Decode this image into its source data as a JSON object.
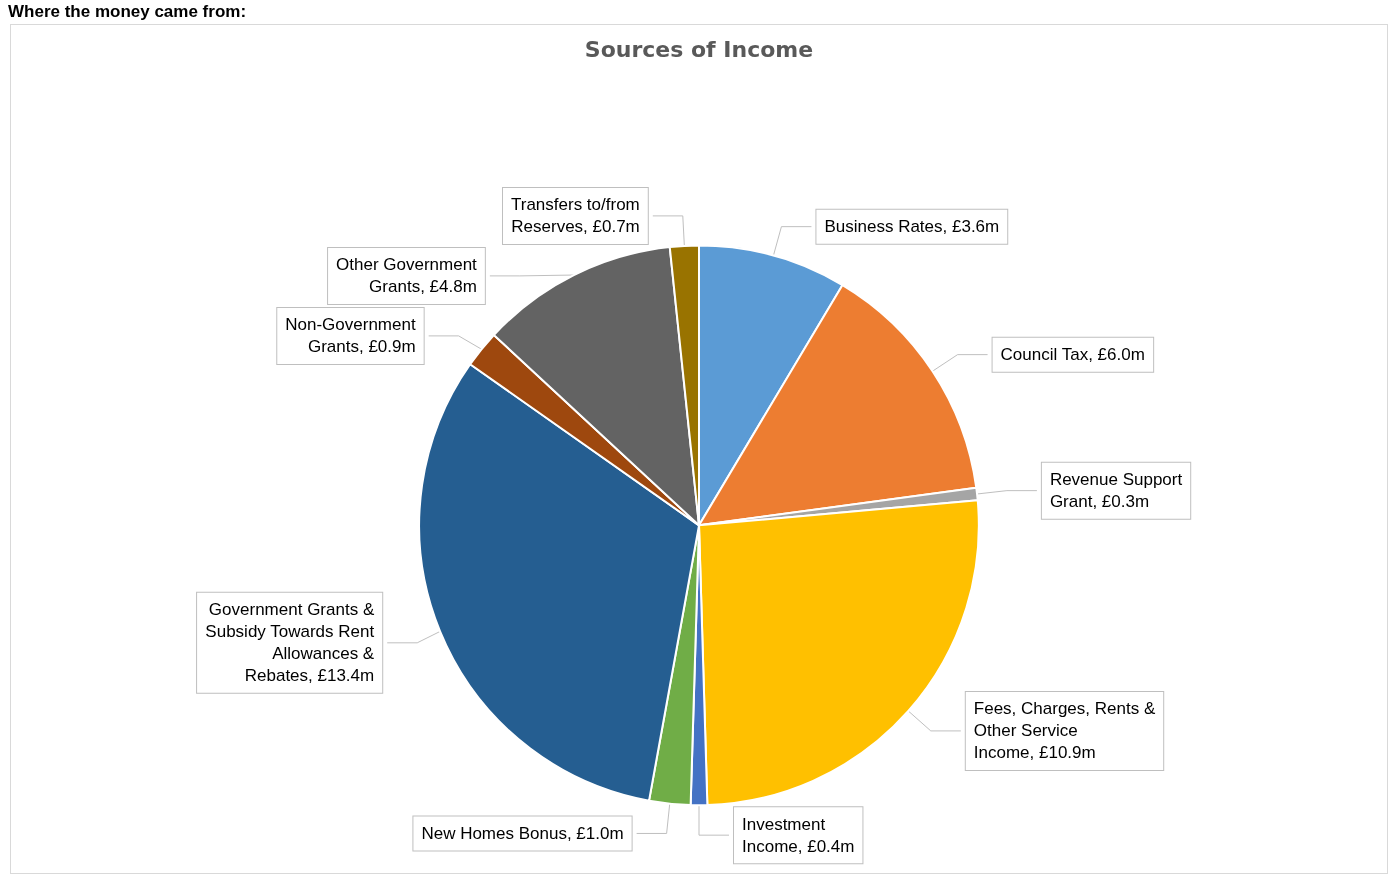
{
  "chart_data": {
    "type": "pie",
    "title": "Sources of Income",
    "annotations": [
      "Where the money came from:"
    ],
    "categories": [
      "Business Rates",
      "Council Tax",
      "Revenue Support Grant",
      "Fees, Charges, Rents & Other Service Income",
      "Investment Income",
      "New Homes Bonus",
      "Government Grants & Subsidy Towards Rent Allowances & Rebates",
      "Non-Government Grants",
      "Other Government Grants",
      "Transfers to/from Reserves"
    ],
    "values": [
      3.6,
      6.0,
      0.3,
      10.9,
      0.4,
      1.0,
      13.4,
      0.9,
      4.8,
      0.7
    ],
    "value_labels": [
      "£3.6m",
      "£6.0m",
      "£0.3m",
      "£10.9m",
      "£0.4m",
      "£1.0m",
      "£13.4m",
      "£0.9m",
      "£4.8m",
      "£0.7m"
    ],
    "colors": [
      "#5b9bd5",
      "#ed7d31",
      "#a5a5a5",
      "#ffc000",
      "#4472c4",
      "#70ad47",
      "#255e91",
      "#9e480e",
      "#636363",
      "#997300"
    ],
    "legend": false
  }
}
